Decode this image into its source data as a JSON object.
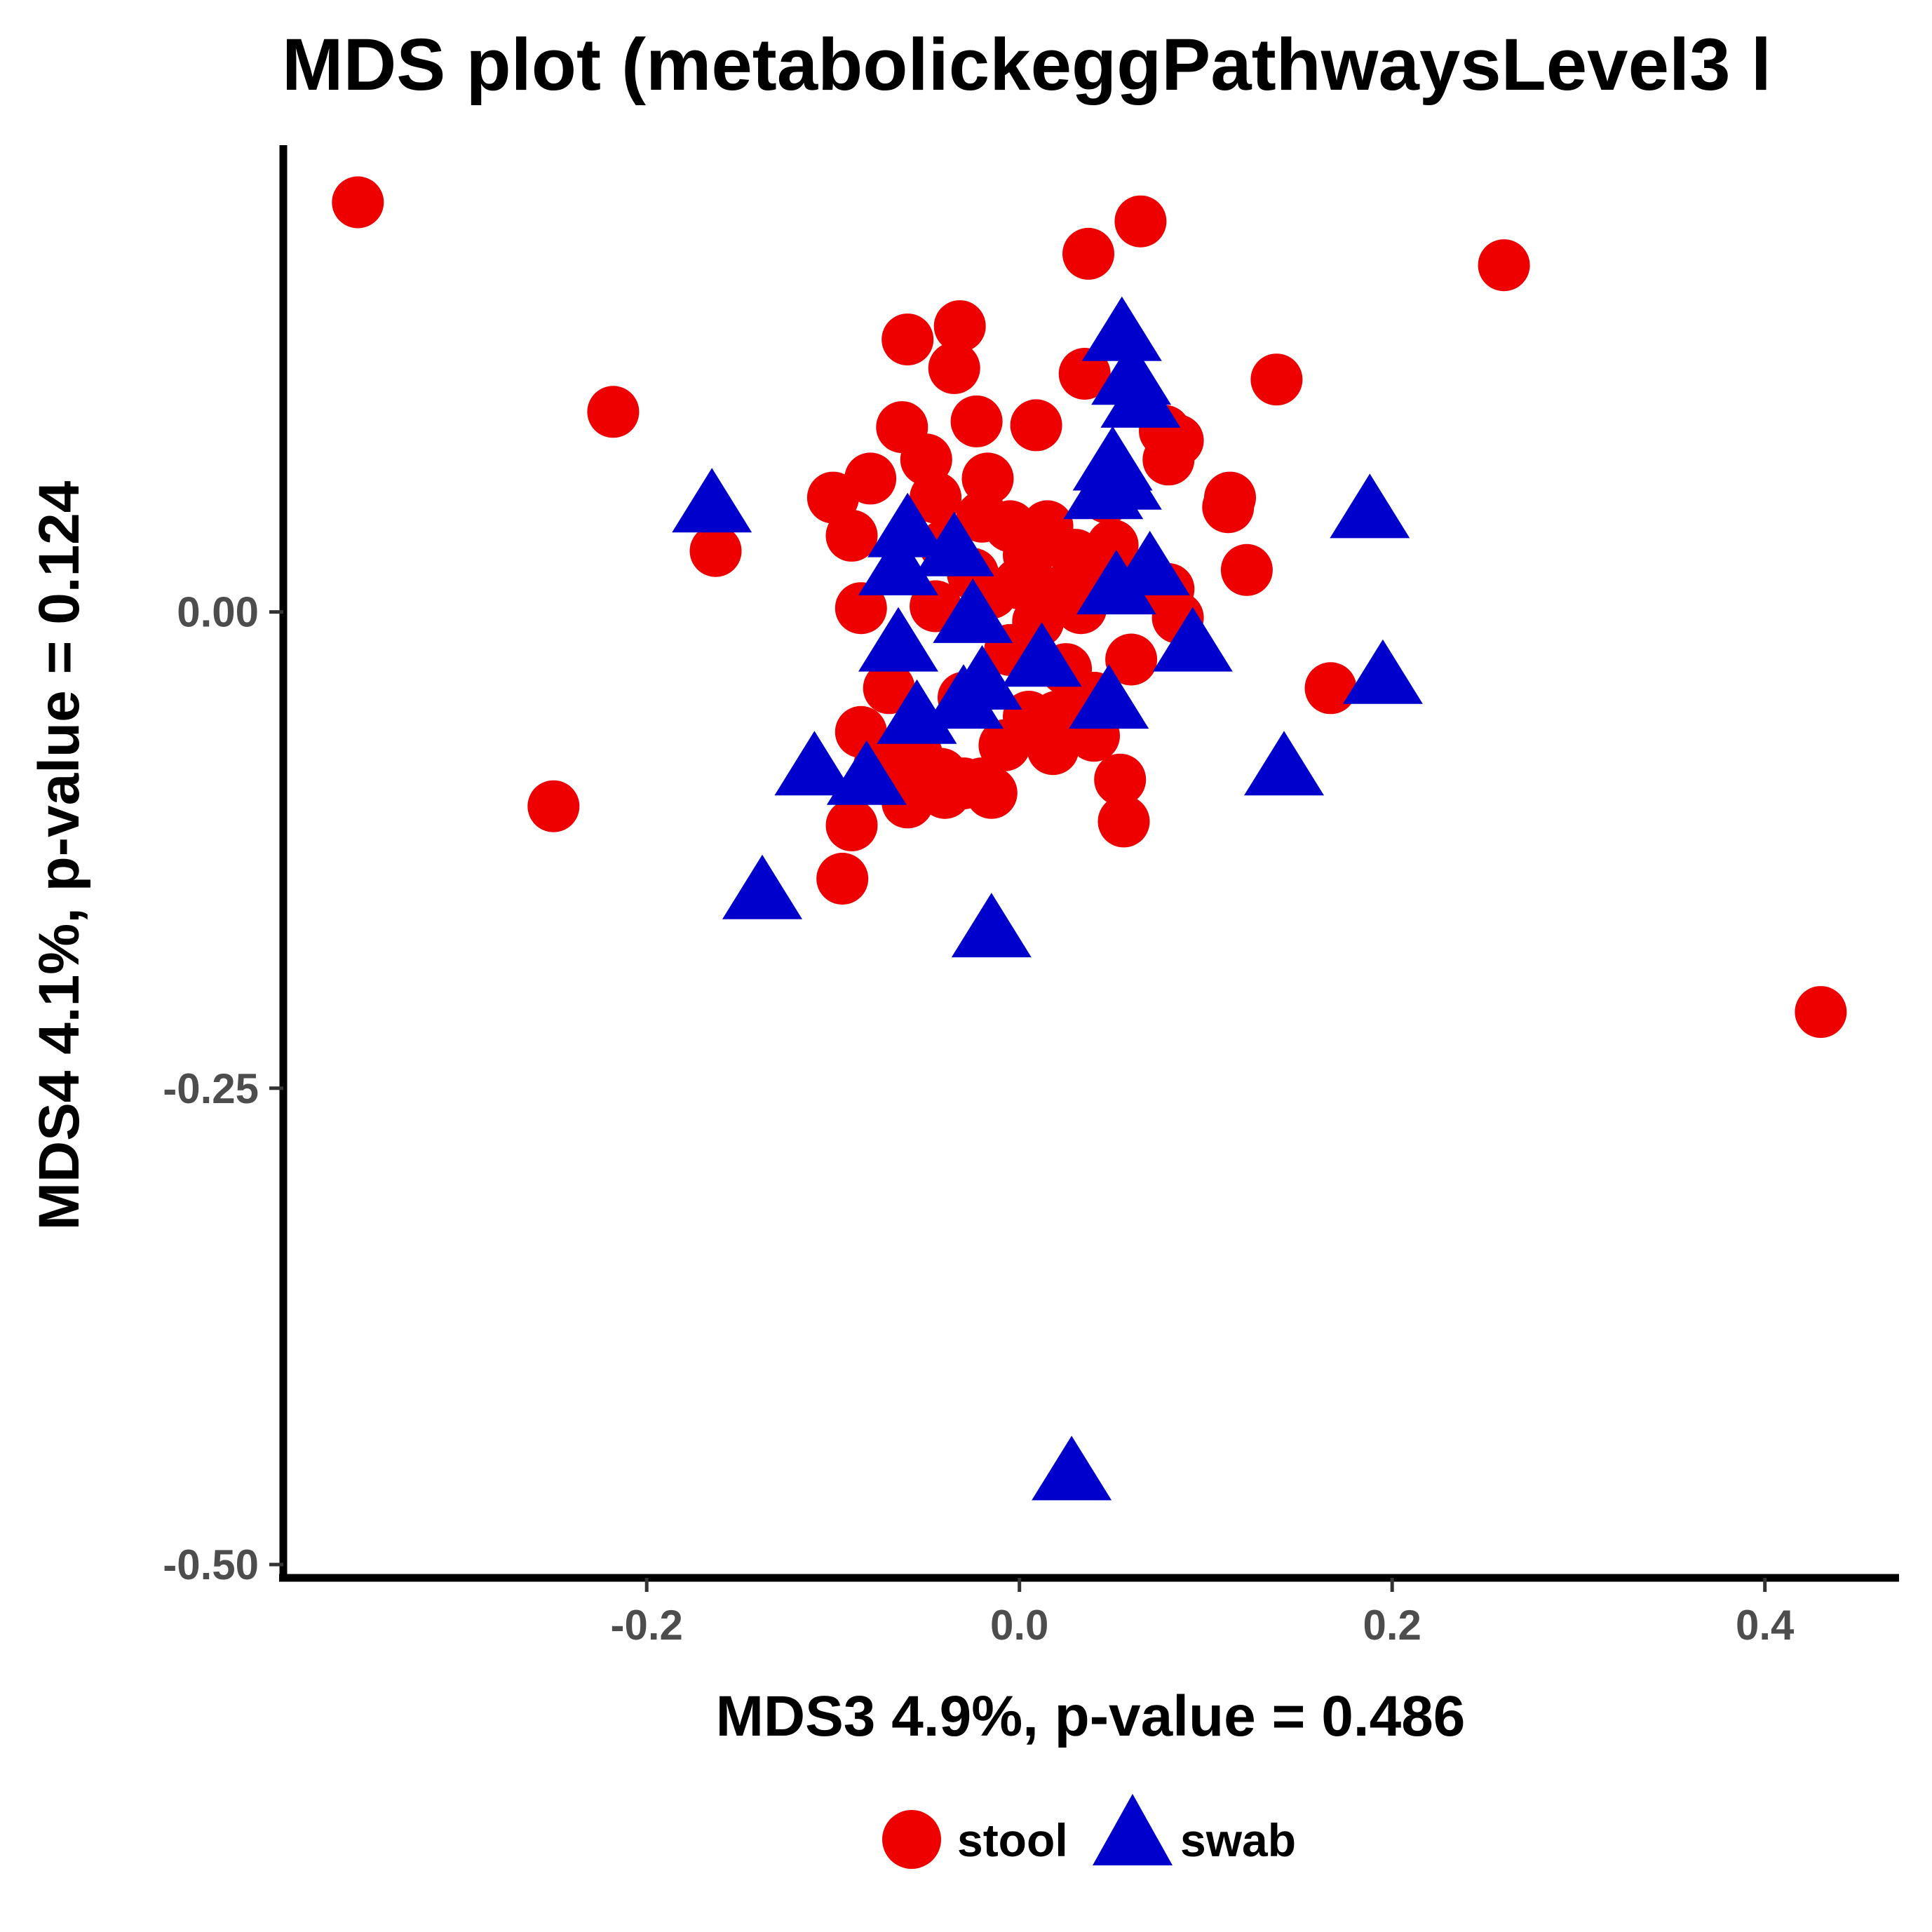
{
  "chart_data": {
    "type": "scatter",
    "title": "MDS plot (metabolickeggPathwaysLevel3 l",
    "xlabel": "MDS3 4.9%, p-value = 0.486",
    "ylabel": "MDS4 4.1%, p-value = 0.124",
    "xlim": [
      -0.395,
      0.472
    ],
    "ylim": [
      -0.507,
      0.245
    ],
    "x_ticks": [
      {
        "value": -0.2,
        "label": "-0.2"
      },
      {
        "value": 0.0,
        "label": "0.0"
      },
      {
        "value": 0.2,
        "label": "0.2"
      },
      {
        "value": 0.4,
        "label": "0.4"
      }
    ],
    "y_ticks": [
      {
        "value": 0.0,
        "label": "0.00"
      },
      {
        "value": -0.25,
        "label": "-0.25"
      },
      {
        "value": -0.5,
        "label": "-0.50"
      }
    ],
    "grid": false,
    "legend_position": "bottom",
    "series": [
      {
        "name": "stool",
        "marker": "circle",
        "color": "#ee0000",
        "points": [
          [
            -0.355,
            0.215
          ],
          [
            0.065,
            0.205
          ],
          [
            0.037,
            0.188
          ],
          [
            0.26,
            0.182
          ],
          [
            -0.06,
            0.143
          ],
          [
            -0.032,
            0.15
          ],
          [
            -0.035,
            0.128
          ],
          [
            0.035,
            0.125
          ],
          [
            0.138,
            0.122
          ],
          [
            -0.218,
            0.105
          ],
          [
            -0.063,
            0.097
          ],
          [
            -0.023,
            0.1
          ],
          [
            0.009,
            0.098
          ],
          [
            0.078,
            0.095
          ],
          [
            0.085,
            0.09
          ],
          [
            0.08,
            0.08
          ],
          [
            -0.08,
            0.07
          ],
          [
            -0.1,
            0.06
          ],
          [
            -0.017,
            0.07
          ],
          [
            -0.045,
            0.06
          ],
          [
            0.113,
            0.06
          ],
          [
            0.047,
            0.06
          ],
          [
            -0.02,
            0.05
          ],
          [
            -0.005,
            0.045
          ],
          [
            -0.09,
            0.04
          ],
          [
            -0.04,
            0.035
          ],
          [
            0.03,
            0.03
          ],
          [
            0.112,
            0.055
          ],
          [
            -0.163,
            0.032
          ],
          [
            0.005,
            0.03
          ],
          [
            0.122,
            0.022
          ],
          [
            0.045,
            0.02
          ],
          [
            0.0,
            0.015
          ],
          [
            -0.025,
            0.02
          ],
          [
            0.02,
            0.01
          ],
          [
            0.08,
            0.012
          ],
          [
            -0.085,
            0.002
          ],
          [
            0.033,
            0.002
          ],
          [
            0.085,
            -0.003
          ],
          [
            -0.045,
            0.003
          ],
          [
            0.01,
            -0.005
          ],
          [
            -0.015,
            0.01
          ],
          [
            0.05,
            0.035
          ],
          [
            -0.07,
            -0.04
          ],
          [
            -0.03,
            -0.045
          ],
          [
            -0.005,
            -0.02
          ],
          [
            0.04,
            -0.045
          ],
          [
            0.167,
            -0.04
          ],
          [
            0.02,
            -0.055
          ],
          [
            -0.085,
            -0.063
          ],
          [
            0.04,
            -0.065
          ],
          [
            -0.008,
            -0.07
          ],
          [
            -0.055,
            -0.075
          ],
          [
            0.018,
            -0.072
          ],
          [
            -0.042,
            -0.085
          ],
          [
            0.054,
            -0.088
          ],
          [
            -0.065,
            -0.088
          ],
          [
            -0.03,
            -0.09
          ],
          [
            -0.015,
            -0.095
          ],
          [
            -0.04,
            -0.095
          ],
          [
            -0.06,
            -0.1
          ],
          [
            -0.25,
            -0.102
          ],
          [
            -0.02,
            -0.09
          ],
          [
            0.056,
            -0.11
          ],
          [
            -0.09,
            -0.112
          ],
          [
            -0.095,
            -0.14
          ],
          [
            0.005,
            -0.055
          ],
          [
            -0.075,
            -0.08
          ],
          [
            0.025,
            -0.03
          ],
          [
            0.06,
            -0.025
          ],
          [
            0.015,
            0.045
          ],
          [
            -0.05,
            0.08
          ],
          [
            0.43,
            -0.21
          ]
        ]
      },
      {
        "name": "swab",
        "marker": "triangle",
        "color": "#0000cd",
        "points": [
          [
            0.055,
            0.143
          ],
          [
            0.06,
            0.12
          ],
          [
            0.065,
            0.108
          ],
          [
            0.05,
            0.075
          ],
          [
            0.055,
            0.065
          ],
          [
            0.045,
            0.06
          ],
          [
            -0.165,
            0.053
          ],
          [
            0.188,
            0.05
          ],
          [
            -0.06,
            0.04
          ],
          [
            -0.035,
            0.03
          ],
          [
            -0.065,
            0.02
          ],
          [
            0.07,
            0.02
          ],
          [
            0.052,
            0.01
          ],
          [
            -0.025,
            -0.005
          ],
          [
            -0.065,
            -0.02
          ],
          [
            0.093,
            -0.02
          ],
          [
            0.012,
            -0.028
          ],
          [
            -0.02,
            -0.04
          ],
          [
            -0.03,
            -0.05
          ],
          [
            0.048,
            -0.05
          ],
          [
            0.195,
            -0.037
          ],
          [
            -0.055,
            -0.058
          ],
          [
            -0.11,
            -0.085
          ],
          [
            0.142,
            -0.085
          ],
          [
            -0.082,
            -0.09
          ],
          [
            -0.138,
            -0.15
          ],
          [
            -0.015,
            -0.17
          ],
          [
            0.028,
            -0.455
          ]
        ]
      }
    ]
  }
}
